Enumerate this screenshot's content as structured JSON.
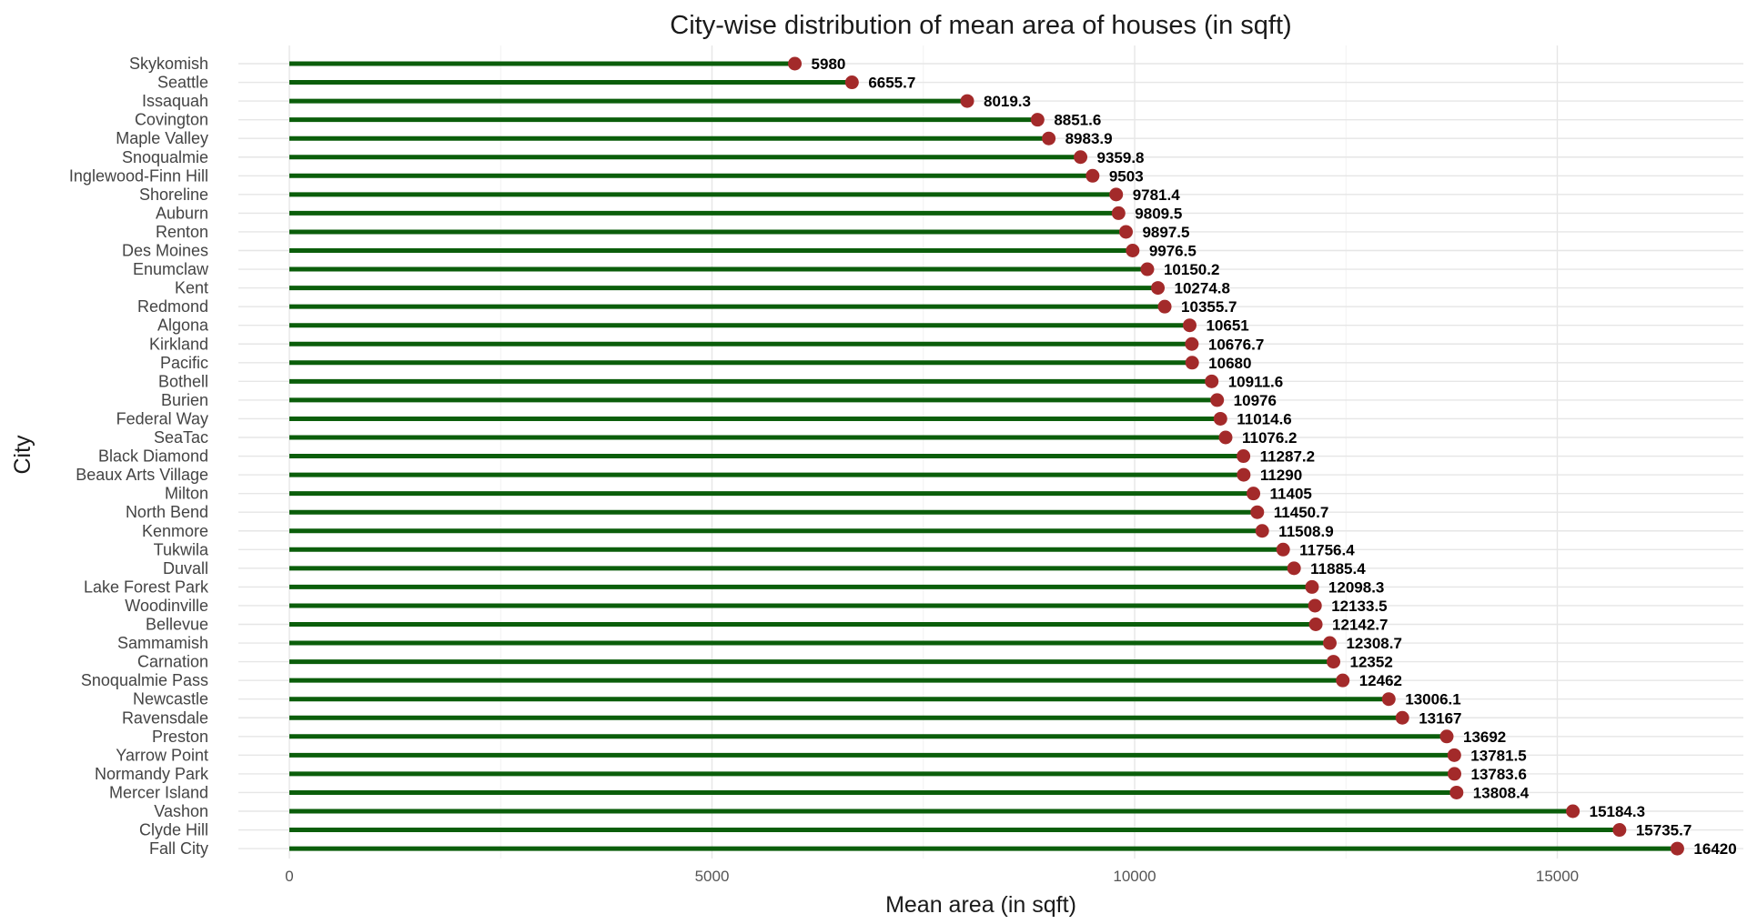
{
  "chart_data": {
    "type": "lollipop",
    "title": "City-wise distribution of mean area of houses (in sqft)",
    "xlabel": "Mean area (in sqft)",
    "ylabel": "City",
    "xlim": [
      -1500,
      17400
    ],
    "xticks": [
      0,
      5000,
      10000,
      15000
    ],
    "grid": true,
    "colors": {
      "stem": "#0b5e0b",
      "dot": "#a32a2a",
      "label": "#000000"
    },
    "categories": [
      "Skykomish",
      "Seattle",
      "Issaquah",
      "Covington",
      "Maple Valley",
      "Snoqualmie",
      "Inglewood-Finn Hill",
      "Shoreline",
      "Auburn",
      "Renton",
      "Des Moines",
      "Enumclaw",
      "Kent",
      "Redmond",
      "Algona",
      "Kirkland",
      "Pacific",
      "Bothell",
      "Burien",
      "Federal Way",
      "SeaTac",
      "Black Diamond",
      "Beaux Arts Village",
      "Milton",
      "North Bend",
      "Kenmore",
      "Tukwila",
      "Duvall",
      "Lake Forest Park",
      "Woodinville",
      "Bellevue",
      "Sammamish",
      "Carnation",
      "Snoqualmie Pass",
      "Newcastle",
      "Ravensdale",
      "Preston",
      "Yarrow Point",
      "Normandy Park",
      "Mercer Island",
      "Vashon",
      "Clyde Hill",
      "Fall City"
    ],
    "values": [
      5980,
      6655.7,
      8019.3,
      8851.6,
      8983.9,
      9359.8,
      9503,
      9781.4,
      9809.5,
      9897.5,
      9976.5,
      10150.2,
      10274.8,
      10355.7,
      10651,
      10676.7,
      10680,
      10911.6,
      10976,
      11014.6,
      11076.2,
      11287.2,
      11290,
      11405,
      11450.7,
      11508.9,
      11756.4,
      11885.4,
      12098.3,
      12133.5,
      12142.7,
      12308.7,
      12352,
      12462,
      13006.1,
      13167,
      13692,
      13781.5,
      13783.6,
      13808.4,
      15184.3,
      15735.7,
      16420
    ],
    "labels": [
      "5980",
      "6655.7",
      "8019.3",
      "8851.6",
      "8983.9",
      "9359.8",
      "9503",
      "9781.4",
      "9809.5",
      "9897.5",
      "9976.5",
      "10150.2",
      "10274.8",
      "10355.7",
      "10651",
      "10676.7",
      "10680",
      "10911.6",
      "10976",
      "11014.6",
      "11076.2",
      "11287.2",
      "11290",
      "11405",
      "11450.7",
      "11508.9",
      "11756.4",
      "11885.4",
      "12098.3",
      "12133.5",
      "12142.7",
      "12308.7",
      "12352",
      "12462",
      "13006.1",
      "13167",
      "13692",
      "13781.5",
      "13783.6",
      "13808.4",
      "15184.3",
      "15735.7",
      "16420"
    ]
  }
}
